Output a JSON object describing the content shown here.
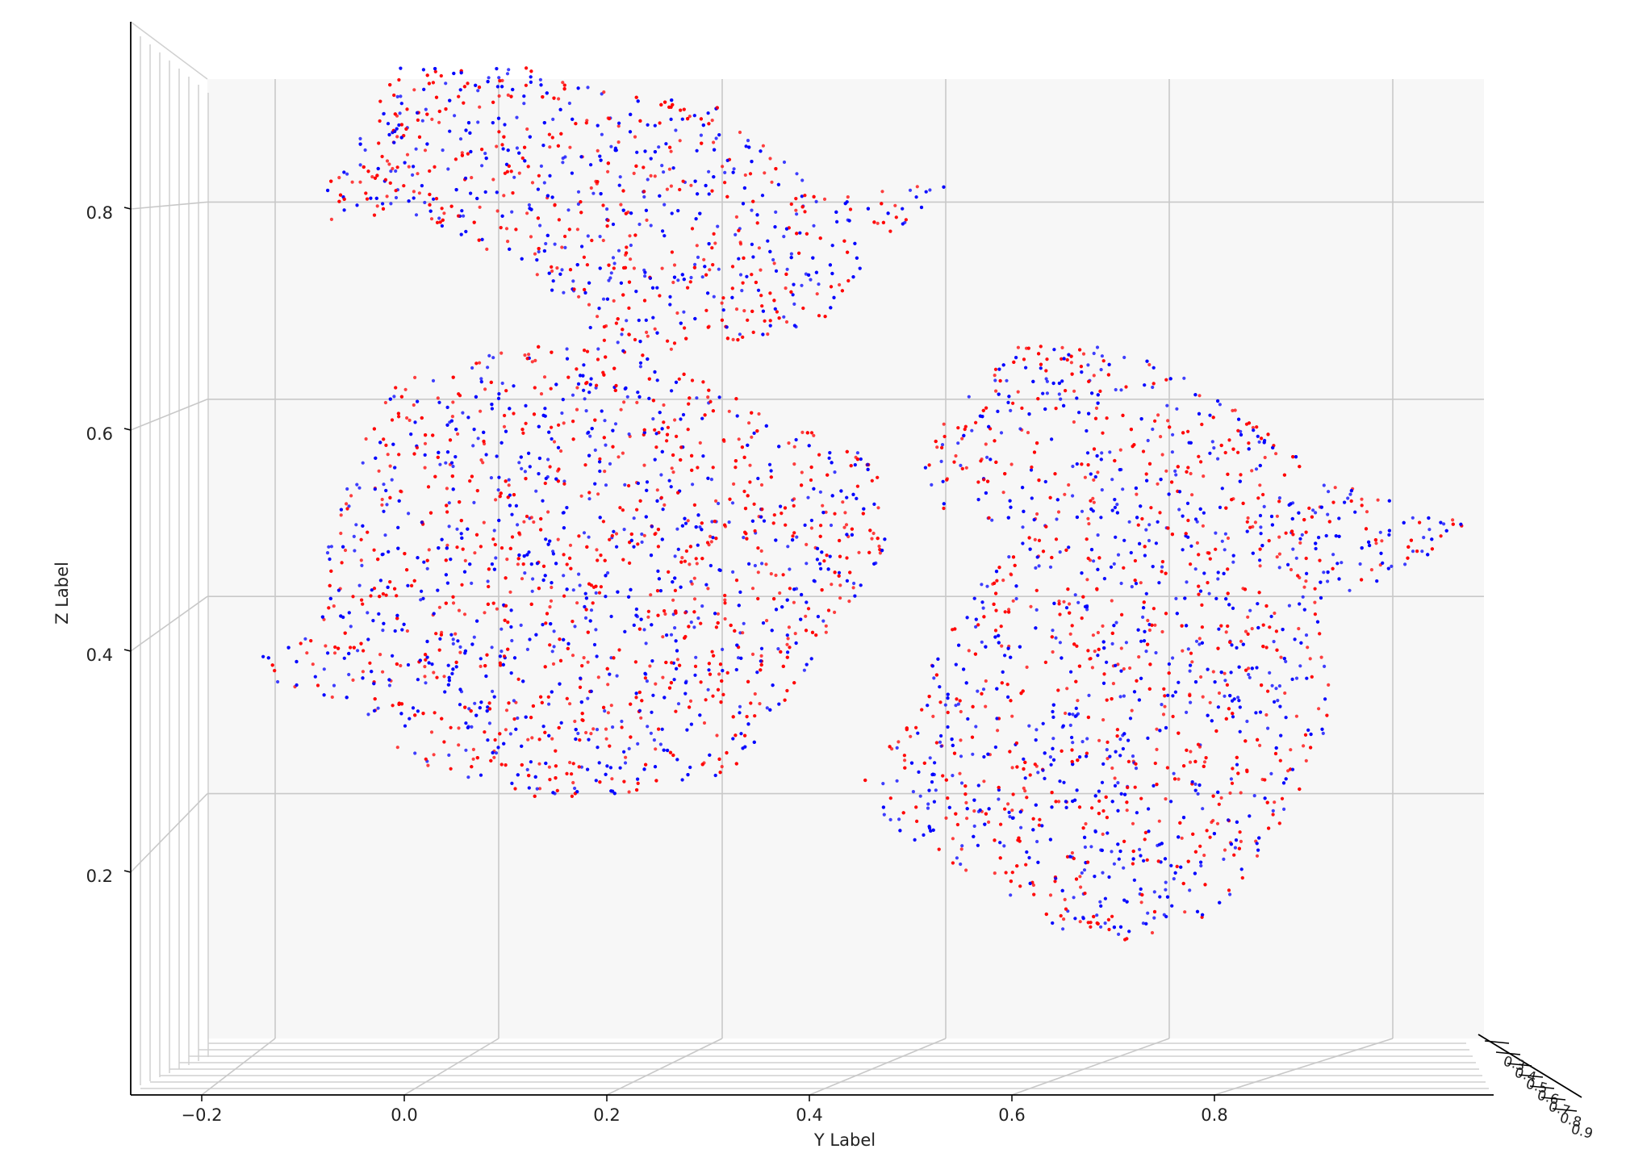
{
  "chart_data": {
    "type": "scatter",
    "projection": "3d",
    "title": "",
    "xlabel": "",
    "ylabel": "Y Label",
    "zlabel": "Z Label",
    "ylim": [
      -0.2,
      0.8
    ],
    "zlim": [
      0.2,
      0.8
    ],
    "y_ticks": [
      {
        "value": -0.2,
        "label": "−0.2"
      },
      {
        "value": 0.0,
        "label": "0.0"
      },
      {
        "value": 0.2,
        "label": "0.2"
      },
      {
        "value": 0.4,
        "label": "0.4"
      },
      {
        "value": 0.6,
        "label": "0.6"
      },
      {
        "value": 0.8,
        "label": "0.8"
      }
    ],
    "z_ticks": [
      {
        "value": 0.2,
        "label": "0.2"
      },
      {
        "value": 0.4,
        "label": "0.4"
      },
      {
        "value": 0.6,
        "label": "0.6"
      },
      {
        "value": 0.8,
        "label": "0.8"
      }
    ],
    "x_ticks": [
      {
        "value": 0.3,
        "label": "0.3"
      },
      {
        "value": 0.4,
        "label": "0.4"
      },
      {
        "value": 0.5,
        "label": "0.5"
      },
      {
        "value": 0.6,
        "label": "0.6"
      },
      {
        "value": 0.7,
        "label": "0.7"
      },
      {
        "value": 0.8,
        "label": "0.8"
      },
      {
        "value": 0.9,
        "label": "0.9"
      }
    ],
    "grid": true,
    "legend": "none",
    "series": [
      {
        "color": "#ff0000",
        "marker_size": 2
      },
      {
        "color": "#0000ff",
        "marker_size": 2
      }
    ],
    "shape": {
      "description_units": "y, z",
      "head_outline": [
        [
          -0.12,
          0.74
        ],
        [
          -0.05,
          0.86
        ],
        [
          0.05,
          0.86
        ],
        [
          0.12,
          0.84
        ],
        [
          0.2,
          0.83
        ],
        [
          0.28,
          0.75
        ],
        [
          0.38,
          0.76
        ],
        [
          0.32,
          0.7
        ],
        [
          0.28,
          0.64
        ],
        [
          0.2,
          0.62
        ],
        [
          0.12,
          0.6
        ],
        [
          0.08,
          0.66
        ],
        [
          -0.05,
          0.74
        ],
        [
          -0.1,
          0.72
        ]
      ],
      "front_body_outline": [
        [
          -0.06,
          0.59
        ],
        [
          0.05,
          0.62
        ],
        [
          0.14,
          0.62
        ],
        [
          0.22,
          0.57
        ],
        [
          0.31,
          0.53
        ],
        [
          0.34,
          0.48
        ],
        [
          0.33,
          0.44
        ],
        [
          0.27,
          0.34
        ],
        [
          0.21,
          0.25
        ],
        [
          0.12,
          0.23
        ],
        [
          0.04,
          0.23
        ],
        [
          -0.04,
          0.26
        ],
        [
          -0.09,
          0.31
        ],
        [
          -0.15,
          0.33
        ],
        [
          -0.16,
          0.35
        ],
        [
          -0.11,
          0.38
        ],
        [
          -0.11,
          0.44
        ],
        [
          -0.09,
          0.5
        ]
      ],
      "back_body_outline": [
        [
          0.35,
          0.52
        ],
        [
          0.43,
          0.62
        ],
        [
          0.52,
          0.62
        ],
        [
          0.6,
          0.57
        ],
        [
          0.66,
          0.52
        ],
        [
          0.7,
          0.5
        ],
        [
          0.76,
          0.47
        ],
        [
          0.79,
          0.47
        ],
        [
          0.74,
          0.42
        ],
        [
          0.67,
          0.4
        ],
        [
          0.68,
          0.3
        ],
        [
          0.64,
          0.2
        ],
        [
          0.58,
          0.12
        ],
        [
          0.49,
          0.1
        ],
        [
          0.42,
          0.15
        ],
        [
          0.34,
          0.2
        ],
        [
          0.31,
          0.24
        ],
        [
          0.35,
          0.3
        ],
        [
          0.38,
          0.38
        ],
        [
          0.44,
          0.46
        ],
        [
          0.37,
          0.48
        ]
      ]
    }
  }
}
